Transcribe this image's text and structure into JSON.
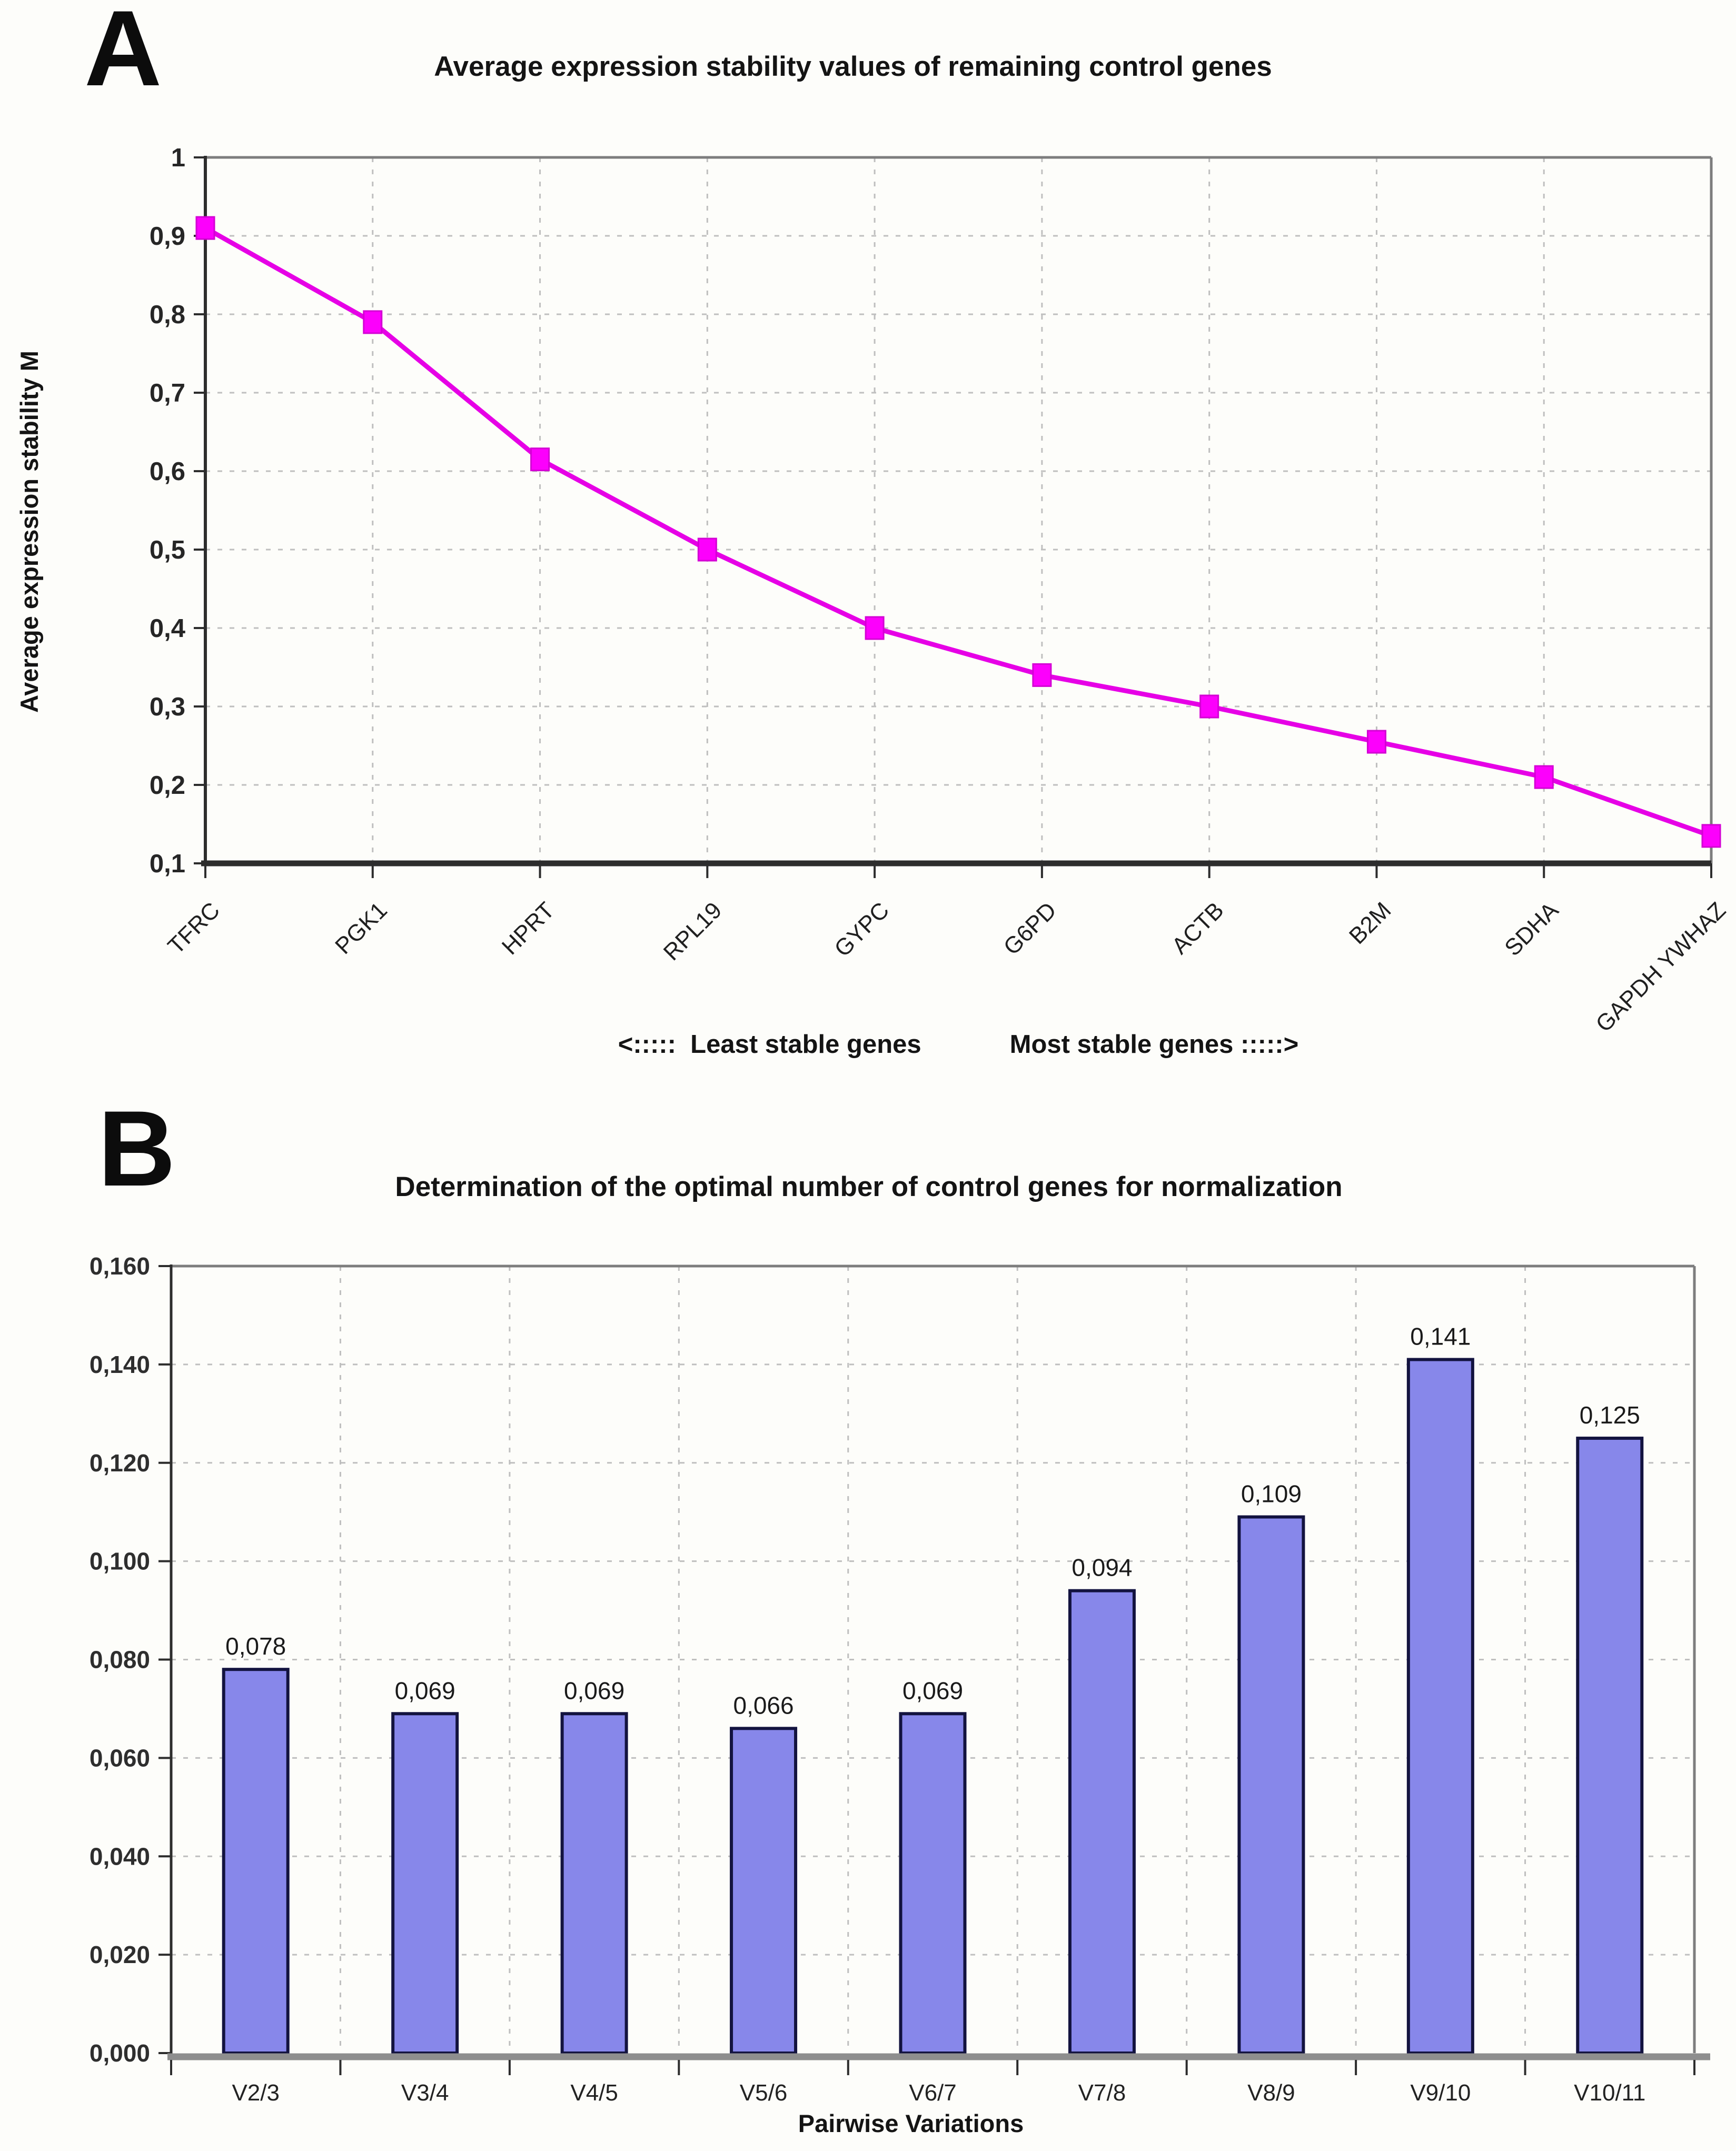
{
  "panels": {
    "a": {
      "label": "A",
      "title": "Average expression stability values of remaining control genes",
      "footer_left": "<:::::  Least stable genes",
      "footer_right": "Most stable genes :::::>"
    },
    "b": {
      "label": "B",
      "title": "Determination of the optimal number of control genes for normalization"
    }
  },
  "chart_data": [
    {
      "type": "line",
      "panel": "A",
      "title": "Average expression stability values of remaining control genes",
      "xlabel": "",
      "ylabel": "Average expression stability M",
      "categories": [
        "TFRC",
        "PGK1",
        "HPRT",
        "RPL19",
        "GYPC",
        "G6PD",
        "ACTB",
        "B2M",
        "SDHA",
        "GAPDH YWHAZ"
      ],
      "values": [
        0.91,
        0.79,
        0.615,
        0.5,
        0.4,
        0.34,
        0.3,
        0.255,
        0.21,
        0.135
      ],
      "ylim": [
        0.1,
        1.0
      ],
      "ytick_step": 0.1,
      "ytick_labels": [
        "0,1",
        "0,2",
        "0,3",
        "0,4",
        "0,5",
        "0,6",
        "0,7",
        "0,8",
        "0,9",
        "1"
      ],
      "grid": true,
      "legend": "none",
      "line_color": "#e600e6",
      "marker_color": "#fc00fc",
      "annotations": [
        "<:::::  Least stable genes",
        "Most stable genes :::::>"
      ]
    },
    {
      "type": "bar",
      "panel": "B",
      "title": "Determination of the optimal number of control genes for normalization",
      "xlabel": "Pairwise Variations",
      "ylabel": "",
      "categories": [
        "V2/3",
        "V3/4",
        "V4/5",
        "V5/6",
        "V6/7",
        "V7/8",
        "V8/9",
        "V9/10",
        "V10/11"
      ],
      "values": [
        0.078,
        0.069,
        0.069,
        0.066,
        0.069,
        0.094,
        0.109,
        0.141,
        0.125
      ],
      "value_labels": [
        "0,078",
        "0,069",
        "0,069",
        "0,066",
        "0,069",
        "0,094",
        "0,109",
        "0,141",
        "0,125"
      ],
      "ylim": [
        0.0,
        0.16
      ],
      "ytick_step": 0.02,
      "ytick_labels": [
        "0,000",
        "0,020",
        "0,040",
        "0,060",
        "0,080",
        "0,100",
        "0,120",
        "0,140",
        "0,160"
      ],
      "grid": true,
      "legend": "none",
      "bar_color": "#8787ea",
      "bar_border": "#13133f"
    }
  ],
  "colors": {
    "background": "#fdfdfa",
    "plot_border": "#7d7d7d",
    "axis": "#2d2d2d",
    "gridline": "#bfbfbf",
    "baseline_b": "#8e8e8e"
  }
}
